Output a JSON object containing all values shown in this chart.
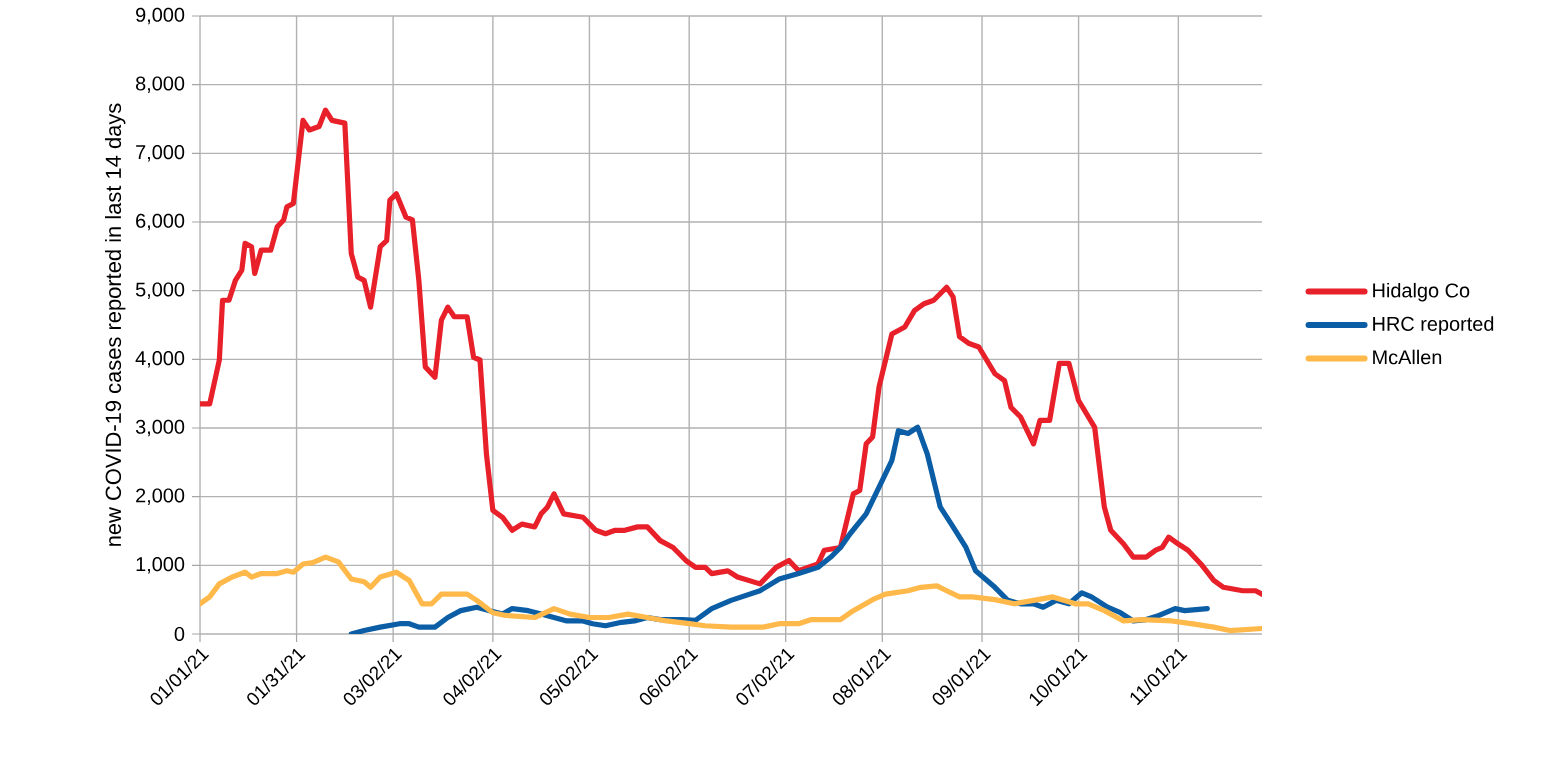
{
  "chart_data": {
    "type": "line",
    "ylabel": "new COVID-19 cases reported in last 14 days",
    "xlim": [
      "2021-01-01",
      "2021-11-27"
    ],
    "xticks": [
      {
        "value": "2021-01-01",
        "label": "01/01/21"
      },
      {
        "value": "2021-01-31",
        "label": "01/31/21"
      },
      {
        "value": "2021-03-02",
        "label": "03/02/21"
      },
      {
        "value": "2021-04-02",
        "label": "04/02/21"
      },
      {
        "value": "2021-05-02",
        "label": "05/02/21"
      },
      {
        "value": "2021-06-02",
        "label": "06/02/21"
      },
      {
        "value": "2021-07-02",
        "label": "07/02/21"
      },
      {
        "value": "2021-08-01",
        "label": "08/01/21"
      },
      {
        "value": "2021-09-01",
        "label": "09/01/21"
      },
      {
        "value": "2021-10-01",
        "label": "10/01/21"
      },
      {
        "value": "2021-11-01",
        "label": "11/01/21"
      }
    ],
    "ylim": [
      0,
      9000
    ],
    "yticks": [
      0,
      {
        "value": 1000,
        "label": "1,000"
      },
      {
        "value": 2000,
        "label": "2,000"
      },
      {
        "value": 3000,
        "label": "3,000"
      },
      {
        "value": 4000,
        "label": "4,000"
      },
      {
        "value": 5000,
        "label": "5,000"
      },
      {
        "value": 6000,
        "label": "6,000"
      },
      {
        "value": 7000,
        "label": "7,000"
      },
      {
        "value": 8000,
        "label": "8,000"
      },
      {
        "value": 9000,
        "label": "9,000"
      }
    ],
    "grid": true,
    "legend": "right",
    "marker": "none",
    "line_style": "solid",
    "series": [
      {
        "name": "Hidalgo Co",
        "color": "#e8202a",
        "x": [
          "2021-01-01",
          "2021-01-04",
          "2021-01-07",
          "2021-01-08",
          "2021-01-10",
          "2021-01-12",
          "2021-01-14",
          "2021-01-15",
          "2021-01-17",
          "2021-01-18",
          "2021-01-20",
          "2021-01-23",
          "2021-01-25",
          "2021-01-27",
          "2021-01-28",
          "2021-01-30",
          "2021-02-02",
          "2021-02-04",
          "2021-02-07",
          "2021-02-09",
          "2021-02-11",
          "2021-02-15",
          "2021-02-17",
          "2021-02-19",
          "2021-02-21",
          "2021-02-23",
          "2021-02-26",
          "2021-02-28",
          "2021-03-01",
          "2021-03-03",
          "2021-03-06",
          "2021-03-08",
          "2021-03-10",
          "2021-03-12",
          "2021-03-15",
          "2021-03-17",
          "2021-03-19",
          "2021-03-21",
          "2021-03-25",
          "2021-03-27",
          "2021-03-29",
          "2021-03-31",
          "2021-04-02",
          "2021-04-05",
          "2021-04-08",
          "2021-04-11",
          "2021-04-15",
          "2021-04-17",
          "2021-04-19",
          "2021-04-21",
          "2021-04-24",
          "2021-04-30",
          "2021-05-04",
          "2021-05-07",
          "2021-05-10",
          "2021-05-13",
          "2021-05-17",
          "2021-05-20",
          "2021-05-24",
          "2021-05-28",
          "2021-06-01",
          "2021-06-04",
          "2021-06-07",
          "2021-06-09",
          "2021-06-14",
          "2021-06-17",
          "2021-06-24",
          "2021-06-29",
          "2021-07-03",
          "2021-07-06",
          "2021-07-12",
          "2021-07-14",
          "2021-07-19",
          "2021-07-23",
          "2021-07-25",
          "2021-07-27",
          "2021-07-29",
          "2021-07-31",
          "2021-08-04",
          "2021-08-08",
          "2021-08-11",
          "2021-08-14",
          "2021-08-17",
          "2021-08-21",
          "2021-08-23",
          "2021-08-25",
          "2021-08-28",
          "2021-08-31",
          "2021-09-05",
          "2021-09-08",
          "2021-09-10",
          "2021-09-13",
          "2021-09-17",
          "2021-09-19",
          "2021-09-22",
          "2021-09-25",
          "2021-09-28",
          "2021-10-01",
          "2021-10-06",
          "2021-10-09",
          "2021-10-11",
          "2021-10-15",
          "2021-10-18",
          "2021-10-22",
          "2021-10-25",
          "2021-10-27",
          "2021-10-29",
          "2021-11-01",
          "2021-11-04",
          "2021-11-08",
          "2021-11-12",
          "2021-11-15",
          "2021-11-21",
          "2021-11-25",
          "2021-11-27"
        ],
        "values": [
          3350,
          3350,
          3990,
          4860,
          4860,
          5150,
          5300,
          5690,
          5640,
          5250,
          5590,
          5590,
          5930,
          6030,
          6220,
          6270,
          7480,
          7340,
          7390,
          7630,
          7480,
          7440,
          5540,
          5200,
          5150,
          4760,
          5640,
          5730,
          6320,
          6410,
          6070,
          6030,
          5150,
          3890,
          3740,
          4570,
          4760,
          4620,
          4620,
          4030,
          3990,
          2620,
          1800,
          1700,
          1510,
          1600,
          1560,
          1750,
          1850,
          2040,
          1750,
          1700,
          1510,
          1460,
          1510,
          1510,
          1560,
          1560,
          1360,
          1260,
          1070,
          970,
          970,
          880,
          920,
          830,
          730,
          970,
          1070,
          920,
          1020,
          1220,
          1260,
          2040,
          2090,
          2770,
          2870,
          3600,
          4370,
          4470,
          4710,
          4810,
          4860,
          5050,
          4910,
          4330,
          4230,
          4180,
          3790,
          3690,
          3300,
          3160,
          2770,
          3110,
          3110,
          3940,
          3940,
          3400,
          3010,
          1850,
          1510,
          1310,
          1120,
          1120,
          1220,
          1260,
          1410,
          1310,
          1220,
          1020,
          780,
          680,
          630,
          630,
          580
        ]
      },
      {
        "name": "HRC reported",
        "color": "#0b5ea5",
        "x": [
          "2021-02-17",
          "2021-02-21",
          "2021-02-26",
          "2021-03-04",
          "2021-03-07",
          "2021-03-10",
          "2021-03-15",
          "2021-03-19",
          "2021-03-23",
          "2021-03-28",
          "2021-04-01",
          "2021-04-05",
          "2021-04-08",
          "2021-04-13",
          "2021-04-17",
          "2021-04-21",
          "2021-04-25",
          "2021-04-30",
          "2021-05-03",
          "2021-05-07",
          "2021-05-12",
          "2021-05-16",
          "2021-05-20",
          "2021-05-24",
          "2021-05-31",
          "2021-06-04",
          "2021-06-09",
          "2021-06-15",
          "2021-06-24",
          "2021-06-30",
          "2021-07-06",
          "2021-07-12",
          "2021-07-16",
          "2021-07-19",
          "2021-07-22",
          "2021-07-27",
          "2021-07-31",
          "2021-08-04",
          "2021-08-06",
          "2021-08-09",
          "2021-08-12",
          "2021-08-15",
          "2021-08-19",
          "2021-08-23",
          "2021-08-27",
          "2021-08-30",
          "2021-09-05",
          "2021-09-09",
          "2021-09-13",
          "2021-09-17",
          "2021-09-20",
          "2021-09-24",
          "2021-09-28",
          "2021-10-02",
          "2021-10-05",
          "2021-10-10",
          "2021-10-14",
          "2021-10-18",
          "2021-10-22",
          "2021-10-26",
          "2021-10-31",
          "2021-11-03",
          "2021-11-10"
        ],
        "values": [
          0,
          50,
          100,
          150,
          150,
          100,
          100,
          240,
          340,
          390,
          340,
          290,
          370,
          340,
          290,
          240,
          190,
          190,
          150,
          120,
          170,
          190,
          240,
          210,
          210,
          200,
          370,
          490,
          630,
          800,
          880,
          970,
          1120,
          1260,
          1460,
          1750,
          2140,
          2530,
          2960,
          2920,
          3010,
          2620,
          1850,
          1560,
          1260,
          920,
          680,
          490,
          440,
          440,
          390,
          490,
          440,
          600,
          540,
          390,
          310,
          190,
          210,
          270,
          370,
          340,
          370
        ]
      },
      {
        "name": "McAllen",
        "color": "#ffb84a",
        "x": [
          "2021-01-01",
          "2021-01-04",
          "2021-01-07",
          "2021-01-11",
          "2021-01-15",
          "2021-01-17",
          "2021-01-20",
          "2021-01-25",
          "2021-01-28",
          "2021-01-30",
          "2021-02-02",
          "2021-02-05",
          "2021-02-09",
          "2021-02-13",
          "2021-02-17",
          "2021-02-21",
          "2021-02-23",
          "2021-02-26",
          "2021-03-03",
          "2021-03-07",
          "2021-03-11",
          "2021-03-14",
          "2021-03-17",
          "2021-03-25",
          "2021-03-28",
          "2021-04-02",
          "2021-04-06",
          "2021-04-15",
          "2021-04-21",
          "2021-04-26",
          "2021-05-02",
          "2021-05-08",
          "2021-05-14",
          "2021-05-20",
          "2021-05-26",
          "2021-06-02",
          "2021-06-07",
          "2021-06-15",
          "2021-06-25",
          "2021-06-30",
          "2021-07-06",
          "2021-07-10",
          "2021-07-19",
          "2021-07-23",
          "2021-07-29",
          "2021-08-02",
          "2021-08-09",
          "2021-08-13",
          "2021-08-18",
          "2021-08-21",
          "2021-08-25",
          "2021-08-29",
          "2021-09-05",
          "2021-09-11",
          "2021-09-17",
          "2021-09-23",
          "2021-09-30",
          "2021-10-04",
          "2021-10-09",
          "2021-10-15",
          "2021-10-21",
          "2021-10-30",
          "2021-11-05",
          "2021-11-12",
          "2021-11-17",
          "2021-11-27"
        ],
        "values": [
          440,
          540,
          730,
          830,
          900,
          830,
          880,
          880,
          920,
          900,
          1020,
          1040,
          1120,
          1050,
          800,
          760,
          680,
          830,
          900,
          780,
          440,
          440,
          580,
          580,
          490,
          310,
          270,
          240,
          370,
          290,
          240,
          240,
          290,
          240,
          190,
          150,
          120,
          100,
          100,
          150,
          150,
          210,
          210,
          340,
          500,
          580,
          630,
          680,
          700,
          630,
          540,
          540,
          500,
          440,
          490,
          540,
          440,
          440,
          340,
          190,
          210,
          190,
          150,
          100,
          50,
          80
        ]
      }
    ]
  }
}
